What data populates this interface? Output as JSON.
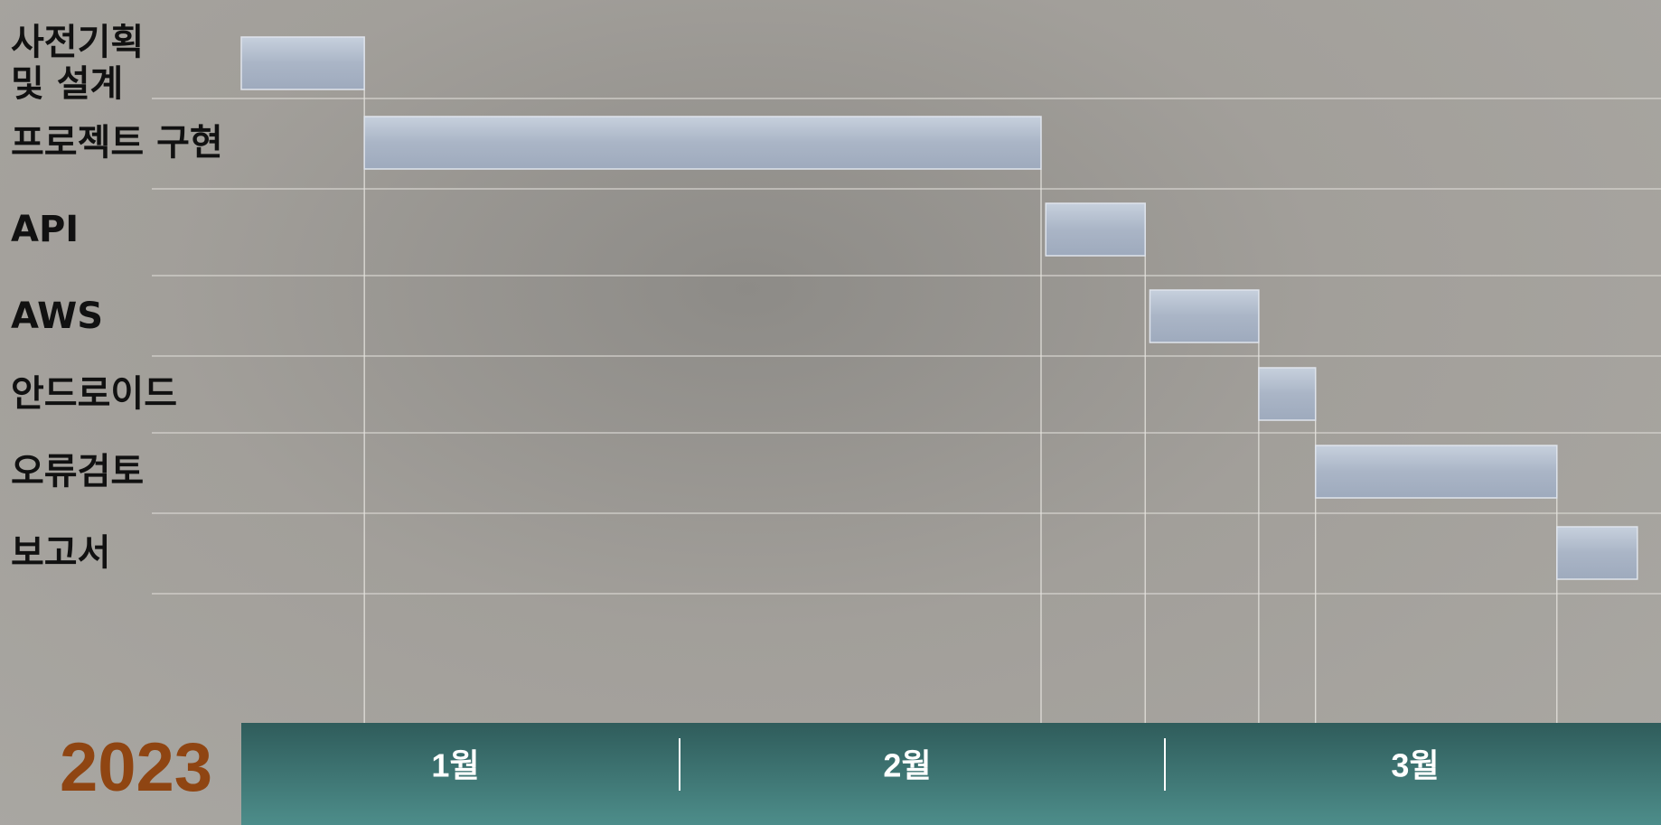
{
  "chart_data": {
    "type": "gantt",
    "year": "2023",
    "tasks": [
      "사전기획\n및 설계",
      "프로젝트 구현",
      "API",
      "AWS",
      "안드로이드",
      "오류검토",
      "보고서"
    ],
    "start": [
      0,
      0.26,
      1.7,
      1.92,
      2.15,
      2.27,
      2.78
    ],
    "end": [
      0.26,
      1.69,
      1.91,
      2.15,
      2.27,
      2.78,
      2.95
    ],
    "categories": [
      "1월",
      "2월",
      "3월"
    ],
    "xlim": [
      0,
      3
    ]
  }
}
